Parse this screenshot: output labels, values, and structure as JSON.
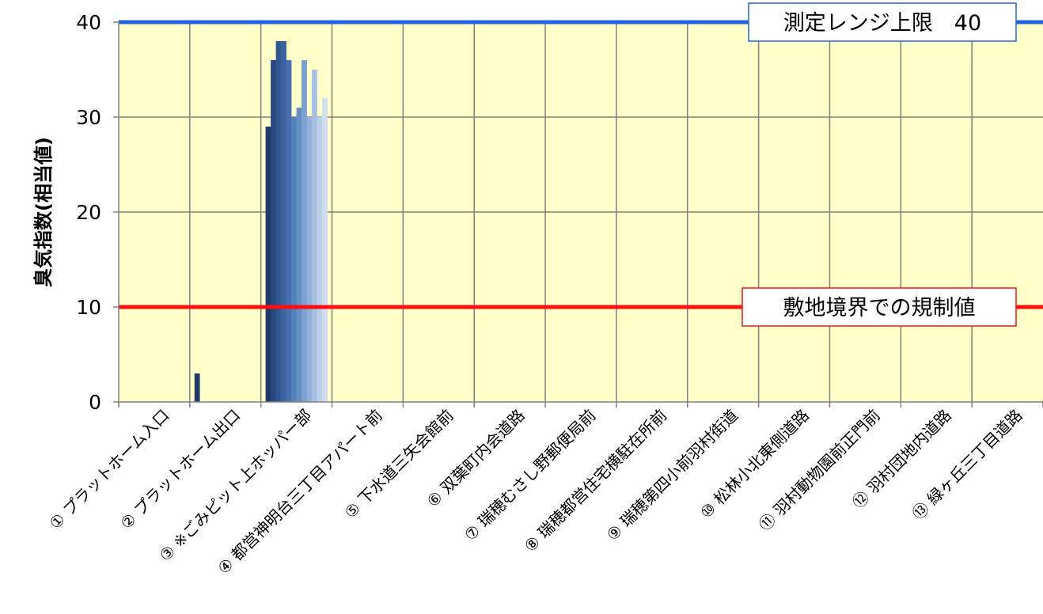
{
  "chart_data": {
    "type": "bar",
    "ylabel": "臭気指数(相当値)",
    "ylim": [
      0,
      40
    ],
    "yticks": [
      0,
      10,
      20,
      30,
      40
    ],
    "grid": true,
    "plot_background": "#ffffc8",
    "categories": [
      "① プラットホーム入口",
      "② プラットホーム出口",
      "③ ※ごみピット上ホッパー部",
      "④ 都営神明台三丁目アパート前",
      "⑤ 下水道三矢会館前",
      "⑥ 双葉町内会道路",
      "⑦ 瑞穂むさし野郵便局前",
      "⑧ 瑞穂都営住宅横駐在所前",
      "⑨ 瑞穂第四小前羽村街道",
      "⑩ 松林小北東側道路",
      "⑪ 羽村動物園前正門前",
      "⑫ 羽村団地内道路",
      "⑬ 緑ヶ丘三丁目道路"
    ],
    "series": [
      {
        "color": "#1f3a6b",
        "values": [
          0,
          3,
          29,
          0,
          0,
          0,
          0,
          0,
          0,
          0,
          0,
          0,
          0
        ]
      },
      {
        "color": "#27477f",
        "values": [
          0,
          0,
          36,
          0,
          0,
          0,
          0,
          0,
          0,
          0,
          0,
          0,
          0
        ]
      },
      {
        "color": "#2e5590",
        "values": [
          0,
          0,
          38,
          0,
          0,
          0,
          0,
          0,
          0,
          0,
          0,
          0,
          0
        ]
      },
      {
        "color": "#3a62a0",
        "values": [
          0,
          0,
          38,
          0,
          0,
          0,
          0,
          0,
          0,
          0,
          0,
          0,
          0
        ]
      },
      {
        "color": "#456faf",
        "values": [
          0,
          0,
          36,
          0,
          0,
          0,
          0,
          0,
          0,
          0,
          0,
          0,
          0
        ]
      },
      {
        "color": "#5480bb",
        "values": [
          0,
          0,
          30,
          0,
          0,
          0,
          0,
          0,
          0,
          0,
          0,
          0,
          0
        ]
      },
      {
        "color": "#6690c6",
        "values": [
          0,
          0,
          31,
          0,
          0,
          0,
          0,
          0,
          0,
          0,
          0,
          0,
          0
        ]
      },
      {
        "color": "#7aa0d0",
        "values": [
          0,
          0,
          36,
          0,
          0,
          0,
          0,
          0,
          0,
          0,
          0,
          0,
          0
        ]
      },
      {
        "color": "#8fb0d9",
        "values": [
          0,
          0,
          30,
          0,
          0,
          0,
          0,
          0,
          0,
          0,
          0,
          0,
          0
        ]
      },
      {
        "color": "#a6c0e2",
        "values": [
          0,
          0,
          35,
          0,
          0,
          0,
          0,
          0,
          0,
          0,
          0,
          0,
          0
        ]
      },
      {
        "color": "#bccfe9",
        "values": [
          0,
          0,
          30,
          0,
          0,
          0,
          0,
          0,
          0,
          0,
          0,
          0,
          0
        ]
      },
      {
        "color": "#d2def0",
        "values": [
          0,
          0,
          32,
          0,
          0,
          0,
          0,
          0,
          0,
          0,
          0,
          0,
          0
        ]
      }
    ],
    "reference_lines": [
      {
        "value": 40,
        "color": "#1f66e0",
        "label": "測定レンジ上限　40"
      },
      {
        "value": 10,
        "color": "#ff1010",
        "label": "敷地境界での規制値"
      }
    ]
  }
}
